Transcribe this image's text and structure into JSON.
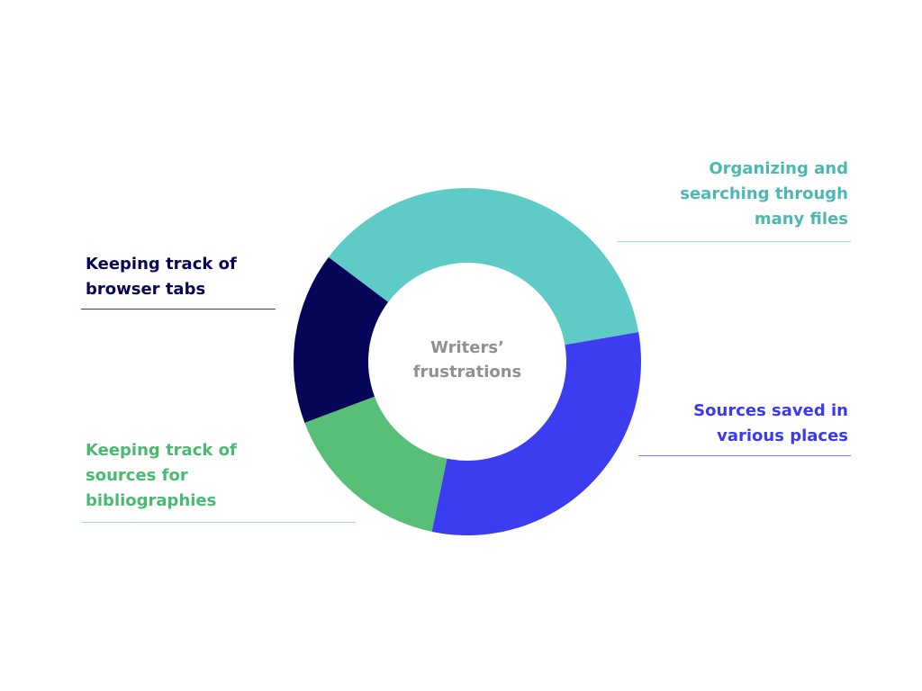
{
  "chart_data": {
    "type": "pie",
    "title": "Writers’\nfrustrations",
    "slices": [
      {
        "label": "Organizing and\nsearching through\nmany files",
        "value": 37,
        "color": "#5ecbc6"
      },
      {
        "label": "Sources saved in\nvarious places",
        "value": 31,
        "color": "#3c3cf0"
      },
      {
        "label": "Keeping track of\nsources for\nbibliographies",
        "value": 16,
        "color": "#57bf78"
      },
      {
        "label": "Keeping track of\nbrowser tabs",
        "value": 16,
        "color": "#060659"
      }
    ]
  },
  "colors": {
    "title": "#909090",
    "teal_text": "#4bb8b3",
    "blue_text": "#3b3bec",
    "green_text": "#4cb970",
    "navy_text": "#060659",
    "teal_line": "#9ddedb",
    "blue_line": "#7d7df2",
    "green_line": "#a4ddb6",
    "navy_line": "#383880"
  }
}
